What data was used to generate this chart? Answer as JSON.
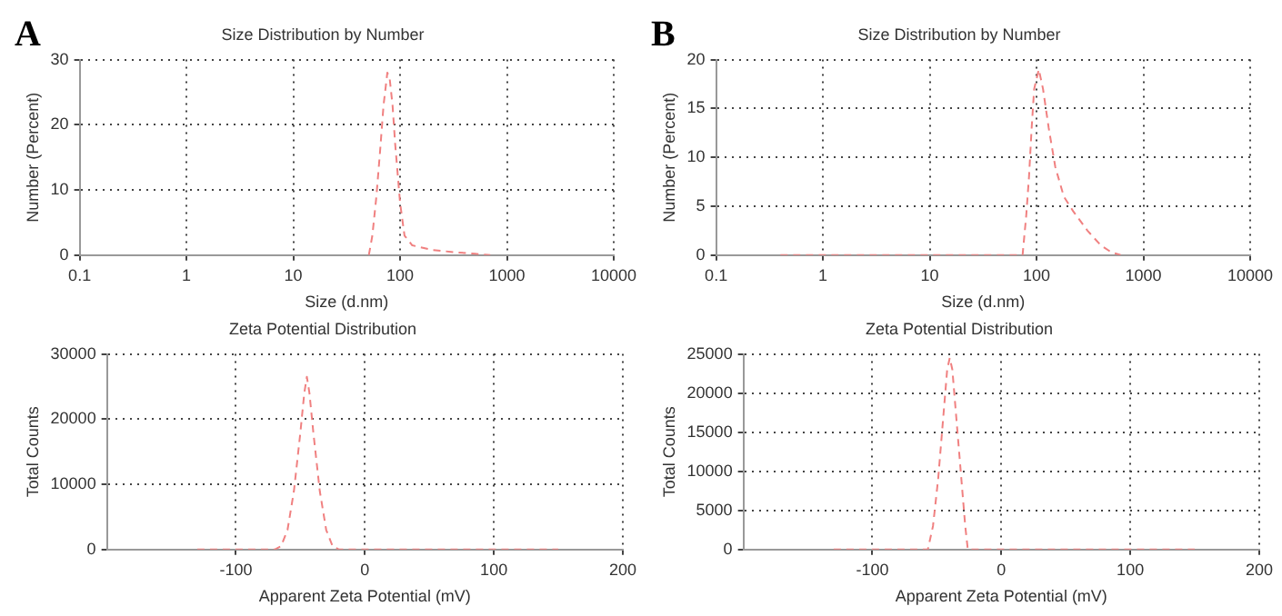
{
  "chart_data": [
    {
      "type": "line",
      "title": "Size Distribution by Number",
      "xlabel": "Size (d.nm)",
      "ylabel": "Number (Percent)",
      "annotations": [
        "A"
      ],
      "log": "x",
      "xlim": [
        0.1,
        10000
      ],
      "xticks": [
        0.1,
        1,
        10,
        100,
        1000,
        10000
      ],
      "ylim": [
        0,
        30
      ],
      "yticks": [
        0,
        10,
        20,
        30
      ],
      "grid": true,
      "legend": false,
      "marker": "none",
      "line_style": "dashed",
      "series": [
        {
          "color": "#f08080",
          "x": [
            51,
            55,
            60,
            65,
            70,
            76,
            80,
            85,
            90,
            100,
            110,
            130,
            200,
            300,
            500,
            700
          ],
          "values": [
            0,
            3,
            9,
            16,
            23,
            28,
            27,
            23,
            17,
            8,
            3,
            1.5,
            0.8,
            0.5,
            0.2,
            0
          ]
        }
      ]
    },
    {
      "type": "line",
      "title": "Size Distribution by Number",
      "xlabel": "Size (d.nm)",
      "ylabel": "Number (Percent)",
      "annotations": [
        "B"
      ],
      "log": "x",
      "xlim": [
        0.1,
        10000
      ],
      "xticks": [
        0.1,
        1,
        10,
        100,
        1000,
        10000
      ],
      "ylim": [
        0,
        20
      ],
      "yticks": [
        0,
        5,
        10,
        15,
        20
      ],
      "grid": true,
      "legend": false,
      "marker": "none",
      "line_style": "dashed",
      "series": [
        {
          "color": "#f08080",
          "x": [
            0.4,
            74,
            80,
            85,
            90,
            95,
            105,
            115,
            130,
            150,
            180,
            220,
            300,
            400,
            500,
            614
          ],
          "values": [
            0,
            0,
            4,
            8,
            13,
            17,
            19,
            17,
            13,
            9,
            6,
            4.5,
            2.5,
            1,
            0.3,
            0
          ]
        }
      ]
    },
    {
      "type": "line",
      "title": "Zeta Potential Distribution",
      "xlabel": "Apparent Zeta Potential (mV)",
      "ylabel": "Total Counts",
      "xlim": [
        -200,
        200
      ],
      "xticks": [
        -100,
        0,
        100,
        200
      ],
      "ylim": [
        0,
        30000
      ],
      "yticks": [
        0,
        10000,
        20000,
        30000
      ],
      "grid": true,
      "legend": false,
      "marker": "none",
      "line_style": "dashed",
      "series": [
        {
          "color": "#f08080",
          "x": [
            -130,
            -70,
            -65,
            -60,
            -55,
            -50,
            -47,
            -45,
            -43,
            -40,
            -35,
            -30,
            -25,
            -20,
            150
          ],
          "values": [
            0,
            0,
            500,
            3000,
            9000,
            18000,
            24000,
            26500,
            24000,
            18000,
            9000,
            3000,
            500,
            0,
            0
          ]
        }
      ]
    },
    {
      "type": "line",
      "title": "Zeta Potential Distribution",
      "xlabel": "Apparent Zeta Potential (mV)",
      "ylabel": "Total Counts",
      "xlim": [
        -200,
        200
      ],
      "xticks": [
        -100,
        0,
        100,
        200
      ],
      "ylim": [
        0,
        25000
      ],
      "yticks": [
        0,
        5000,
        10000,
        15000,
        20000,
        25000
      ],
      "grid": true,
      "legend": false,
      "marker": "none",
      "line_style": "dashed",
      "series": [
        {
          "color": "#f08080",
          "x": [
            -130,
            -57,
            -53,
            -49,
            -45,
            -42,
            -40,
            -38,
            -35,
            -31,
            -28,
            -26,
            150
          ],
          "values": [
            0,
            0,
            3000,
            9000,
            17000,
            23000,
            24500,
            23000,
            17000,
            9000,
            3000,
            0,
            0
          ]
        }
      ]
    }
  ]
}
